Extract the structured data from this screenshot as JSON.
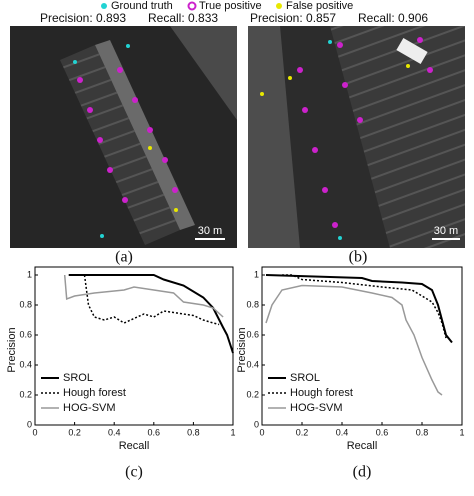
{
  "legend": {
    "items": [
      "Ground truth",
      "True positive",
      "False positive"
    ]
  },
  "images": [
    {
      "stats": [
        "Precision: 0.893",
        "Recall: 0.833"
      ],
      "scale": "30 m",
      "caption": "(a)"
    },
    {
      "stats": [
        "Precision: 0.857",
        "Recall: 0.906"
      ],
      "scale": "30 m",
      "caption": "(b)"
    }
  ],
  "chart_data": [
    {
      "type": "line",
      "xlabel": "Recall",
      "ylabel": "Precision",
      "caption": "(c)",
      "xlim": [
        0,
        1
      ],
      "ylim": [
        0,
        1
      ],
      "xticks": [
        0,
        0.2,
        0.4,
        0.6,
        0.8,
        1
      ],
      "yticks": [
        0,
        0.2,
        0.4,
        0.6,
        0.8,
        1
      ],
      "legend": "lower left",
      "series": [
        {
          "name": "SROL",
          "color": "#000000",
          "line_style": "solid",
          "x": [
            0.17,
            0.6,
            0.65,
            0.75,
            0.85,
            0.9,
            0.95,
            0.97,
            1.0
          ],
          "values": [
            1.0,
            1.0,
            0.97,
            0.93,
            0.85,
            0.78,
            0.65,
            0.6,
            0.48
          ]
        },
        {
          "name": "Hough forest",
          "color": "#000000",
          "line_style": "dotted",
          "x": [
            0.25,
            0.27,
            0.3,
            0.35,
            0.4,
            0.45,
            0.55,
            0.6,
            0.65,
            0.7,
            0.8,
            0.85,
            0.9,
            0.93
          ],
          "values": [
            1.0,
            0.8,
            0.72,
            0.7,
            0.72,
            0.68,
            0.74,
            0.72,
            0.76,
            0.75,
            0.73,
            0.7,
            0.68,
            0.67
          ]
        },
        {
          "name": "HOG-SVM",
          "color": "#999999",
          "line_style": "solid",
          "x": [
            0.15,
            0.16,
            0.2,
            0.3,
            0.45,
            0.5,
            0.6,
            0.7,
            0.75,
            0.85,
            0.9,
            0.95
          ],
          "values": [
            1.0,
            0.84,
            0.86,
            0.88,
            0.9,
            0.92,
            0.9,
            0.88,
            0.82,
            0.8,
            0.78,
            0.72
          ]
        }
      ]
    },
    {
      "type": "line",
      "xlabel": "Recall",
      "ylabel": "Precision",
      "caption": "(d)",
      "xlim": [
        0,
        1
      ],
      "ylim": [
        0,
        1
      ],
      "xticks": [
        0,
        0.2,
        0.4,
        0.6,
        0.8,
        1
      ],
      "yticks": [
        0,
        0.2,
        0.4,
        0.6,
        0.8,
        1
      ],
      "legend": "lower left",
      "series": [
        {
          "name": "SROL",
          "color": "#000000",
          "line_style": "solid",
          "x": [
            0.02,
            0.5,
            0.55,
            0.7,
            0.8,
            0.85,
            0.88,
            0.9,
            0.92,
            0.95
          ],
          "values": [
            1.0,
            0.98,
            0.96,
            0.95,
            0.94,
            0.9,
            0.8,
            0.7,
            0.6,
            0.55
          ]
        },
        {
          "name": "Hough forest",
          "color": "#000000",
          "line_style": "dotted",
          "x": [
            0.1,
            0.15,
            0.2,
            0.4,
            0.6,
            0.75,
            0.85,
            0.88,
            0.9,
            0.92
          ],
          "values": [
            1.0,
            1.0,
            0.97,
            0.95,
            0.92,
            0.9,
            0.82,
            0.75,
            0.68,
            0.58
          ]
        },
        {
          "name": "HOG-SVM",
          "color": "#999999",
          "line_style": "solid",
          "x": [
            0.02,
            0.05,
            0.1,
            0.2,
            0.4,
            0.55,
            0.65,
            0.7,
            0.72,
            0.76,
            0.8,
            0.85,
            0.88,
            0.9
          ],
          "values": [
            0.68,
            0.8,
            0.9,
            0.93,
            0.92,
            0.88,
            0.85,
            0.8,
            0.7,
            0.6,
            0.45,
            0.3,
            0.22,
            0.2
          ]
        }
      ]
    }
  ]
}
